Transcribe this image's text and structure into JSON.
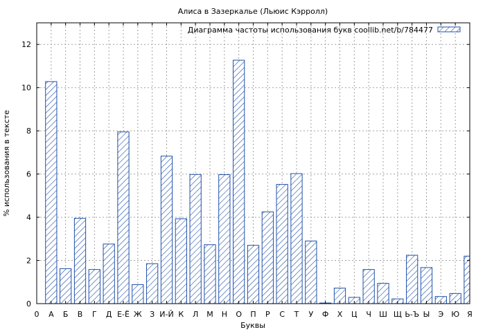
{
  "chart_data": {
    "type": "bar",
    "title": "Алиса в Зазеркалье (Льюис Кэрролл)",
    "xlabel": "Буквы",
    "ylabel": "% использования в тексте",
    "ylim": [
      0,
      13
    ],
    "yticks": [
      0,
      2,
      4,
      6,
      8,
      10,
      12
    ],
    "grid": true,
    "legend_position": "top-right",
    "bar_color": "#1f4fa8",
    "x_tick_labels": [
      "0",
      "А",
      "Б",
      "В",
      "Г",
      "Д",
      "Е-Ё",
      "Ж",
      "З",
      "И-Й",
      "К",
      "Л",
      "М",
      "Н",
      "О",
      "П",
      "Р",
      "С",
      "Т",
      "У",
      "Ф",
      "Х",
      "Ц",
      "Ч",
      "Ш",
      "Щ",
      "Ь-Ъ",
      "Ы",
      "Э",
      "Ю",
      "Я"
    ],
    "categories": [
      "А",
      "Б",
      "В",
      "Г",
      "Д",
      "Е-Ё",
      "Ж",
      "З",
      "И-Й",
      "К",
      "Л",
      "М",
      "Н",
      "О",
      "П",
      "Р",
      "С",
      "Т",
      "У",
      "Ф",
      "Х",
      "Ц",
      "Ч",
      "Ш",
      "Щ",
      "Ь-Ъ",
      "Ы",
      "Э",
      "Ю",
      "Я"
    ],
    "series": [
      {
        "name": "Диаграмма частоты использования букв coollib.net/b/784477",
        "values": [
          10.28,
          1.62,
          3.95,
          1.58,
          2.76,
          7.95,
          0.88,
          1.85,
          6.83,
          3.93,
          5.98,
          2.73,
          5.97,
          11.27,
          2.7,
          4.25,
          5.52,
          6.02,
          2.9,
          0.03,
          0.72,
          0.29,
          1.58,
          0.94,
          0.22,
          2.24,
          1.67,
          0.33,
          0.47,
          2.2
        ]
      }
    ]
  }
}
